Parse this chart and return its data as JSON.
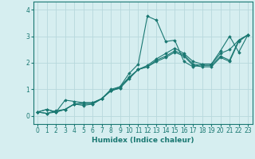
{
  "xlabel": "Humidex (Indice chaleur)",
  "ylabel": "",
  "xlim": [
    -0.5,
    23.5
  ],
  "ylim": [
    -0.3,
    4.3
  ],
  "xticks": [
    0,
    1,
    2,
    3,
    4,
    5,
    6,
    7,
    8,
    9,
    10,
    11,
    12,
    13,
    14,
    15,
    16,
    17,
    18,
    19,
    20,
    21,
    22,
    23
  ],
  "yticks": [
    0,
    1,
    2,
    3,
    4
  ],
  "bg_color": "#d6eef0",
  "line_color": "#1a7872",
  "grid_color": "#b8d8dc",
  "series": [
    [
      0.15,
      0.25,
      0.15,
      0.6,
      0.55,
      0.5,
      0.5,
      0.65,
      1.0,
      1.1,
      1.6,
      1.95,
      3.75,
      3.6,
      2.8,
      2.85,
      2.05,
      1.85,
      1.95,
      1.95,
      2.45,
      3.0,
      2.4,
      3.05
    ],
    [
      0.15,
      0.25,
      0.15,
      0.25,
      0.45,
      0.5,
      0.5,
      0.65,
      0.95,
      1.1,
      1.45,
      1.75,
      1.9,
      2.15,
      2.35,
      2.55,
      2.35,
      2.05,
      1.95,
      1.95,
      2.35,
      2.5,
      2.85,
      3.05
    ],
    [
      0.15,
      0.1,
      0.15,
      0.25,
      0.45,
      0.45,
      0.45,
      0.65,
      0.95,
      1.05,
      1.45,
      1.75,
      1.85,
      2.1,
      2.25,
      2.45,
      2.3,
      1.95,
      1.9,
      1.9,
      2.25,
      2.1,
      2.85,
      3.05
    ],
    [
      0.15,
      0.1,
      0.2,
      0.25,
      0.45,
      0.4,
      0.45,
      0.65,
      0.95,
      1.05,
      1.4,
      1.75,
      1.85,
      2.05,
      2.2,
      2.4,
      2.25,
      1.9,
      1.85,
      1.85,
      2.2,
      2.05,
      2.8,
      3.05
    ]
  ]
}
